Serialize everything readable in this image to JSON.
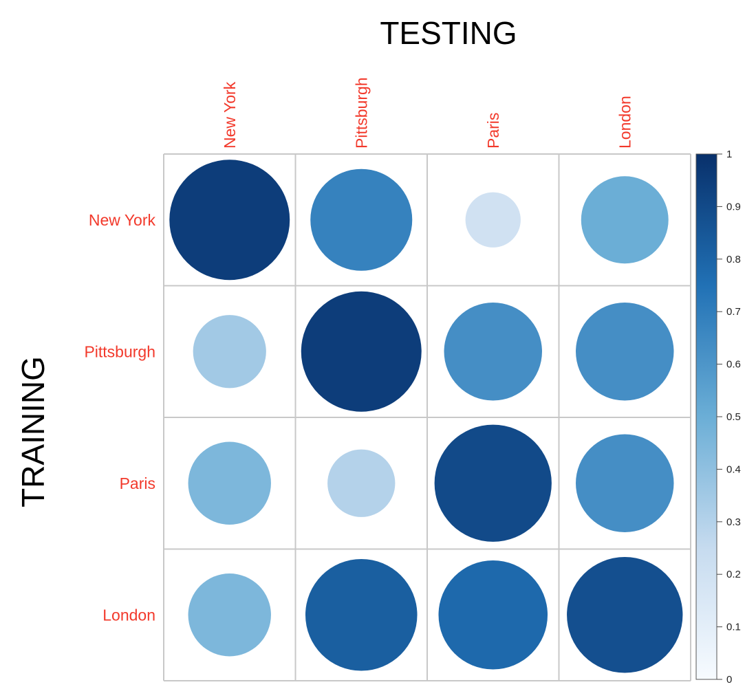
{
  "chart_data": {
    "type": "heatmap",
    "subtype": "correlation-circle-matrix",
    "xlabel": "TESTING",
    "ylabel": "TRAINING",
    "columns": [
      "New York",
      "Pittsburgh",
      "Paris",
      "London"
    ],
    "rows": [
      "New York",
      "Pittsburgh",
      "Paris",
      "London"
    ],
    "values": [
      [
        0.95,
        0.68,
        0.2,
        0.5
      ],
      [
        0.35,
        0.95,
        0.63,
        0.63
      ],
      [
        0.45,
        0.3,
        0.9,
        0.63
      ],
      [
        0.45,
        0.82,
        0.78,
        0.88
      ]
    ],
    "colorbar": {
      "min": 0,
      "max": 1,
      "ticks": [
        "0",
        "0.1",
        "0.2",
        "0.3",
        "0.4",
        "0.5",
        "0.6",
        "0.7",
        "0.8",
        "0.9",
        "1"
      ],
      "low_color": "#f7fbff",
      "high_color": "#08306b"
    },
    "label_color": "#f2392b",
    "grid": true
  }
}
